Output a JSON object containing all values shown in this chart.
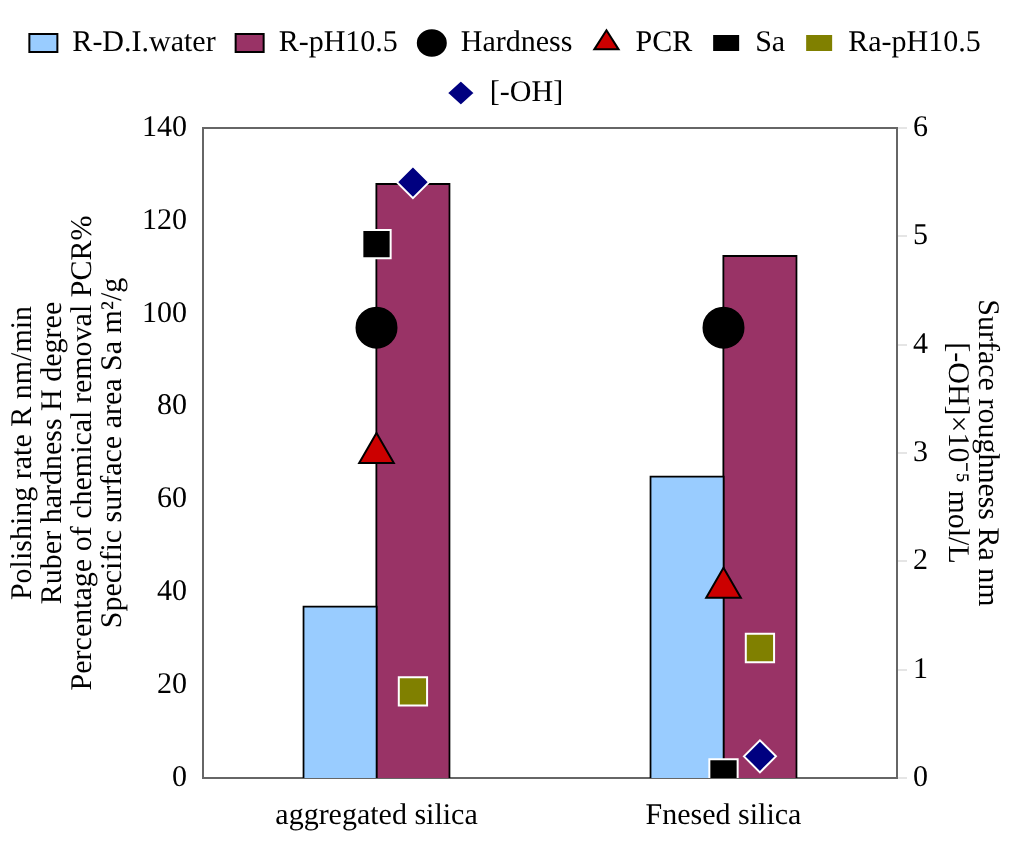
{
  "chart_data": {
    "type": "bar",
    "categories": [
      "aggregated silica",
      "Fnesed silica"
    ],
    "ylabel": "Polishing rate R nm/min\nRuber hardness H degree\nPercentage of chemical removal PCR%\nSpecific surface area Sa m²/g",
    "y2label": "Surface roughness Ra nm\n[-OH]×10⁻⁵ mol/L",
    "ylim": [
      0,
      140
    ],
    "yticks": [
      0,
      20,
      40,
      60,
      80,
      100,
      120,
      140
    ],
    "y2lim": [
      0,
      6
    ],
    "y2ticks": [
      0,
      1,
      2,
      3,
      4,
      5,
      6
    ],
    "legend": "top",
    "grid": false,
    "series": [
      {
        "name": "R-D.I.water",
        "color": "#99ccff",
        "values": [
          37,
          65
        ]
      },
      {
        "name": "R-pH10.5",
        "color": "#993366",
        "values": [
          128,
          112.5
        ]
      },
      {
        "name": "Hardness",
        "type": "scatter",
        "marker": "circle",
        "color": "#000000",
        "values": [
          97,
          97
        ]
      },
      {
        "name": "PCR",
        "type": "scatter",
        "marker": "triangle",
        "color": "#cc0000",
        "values": [
          70,
          41
        ]
      },
      {
        "name": "Sa",
        "type": "scatter",
        "marker": "square",
        "color": "#000000",
        "values": [
          115,
          1
        ]
      },
      {
        "name": "Ra-pH10.5",
        "type": "scatter",
        "marker": "square",
        "color": "#808000",
        "axis": "y2",
        "values": [
          0.8,
          1.2
        ]
      },
      {
        "name": "[-OH]",
        "type": "scatter",
        "marker": "diamond",
        "color": "#000080",
        "axis": "y2",
        "values": [
          5.5,
          0.2
        ]
      }
    ]
  }
}
